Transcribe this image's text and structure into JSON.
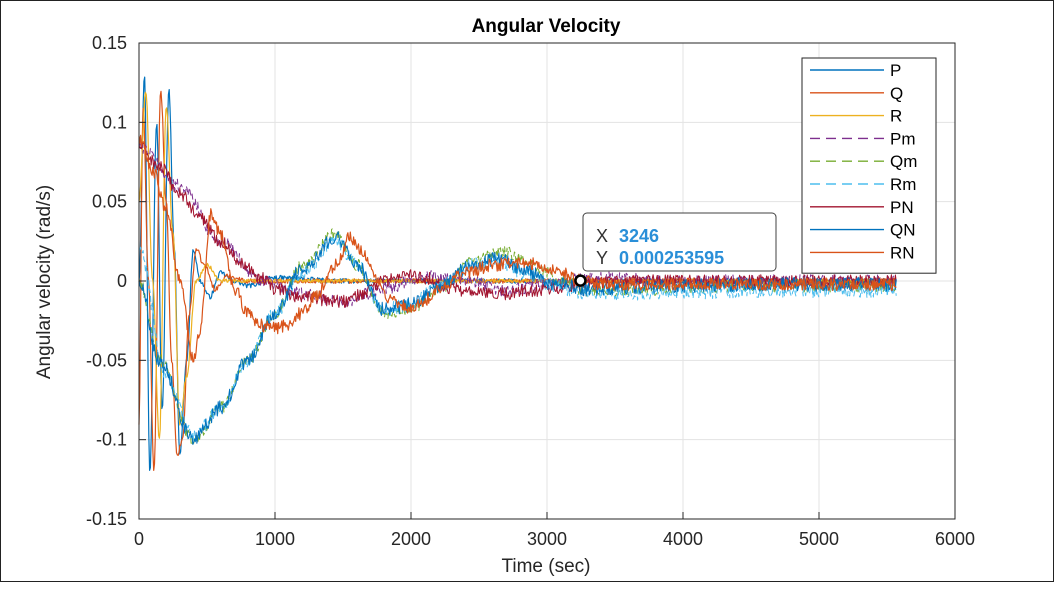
{
  "chart_data": {
    "type": "line",
    "title": "Angular Velocity",
    "xlabel": "Time (sec)",
    "ylabel": "Angular velocity (rad/s)",
    "xlim": [
      0,
      6000
    ],
    "ylim": [
      -0.15,
      0.15
    ],
    "grid": true,
    "xticks": [
      0,
      1000,
      2000,
      3000,
      4000,
      5000,
      6000
    ],
    "xtick_labels": [
      "0",
      "1000",
      "2000",
      "3000",
      "4000",
      "5000",
      "6000"
    ],
    "yticks": [
      -0.15,
      -0.1,
      -0.05,
      0,
      0.05,
      0.1,
      0.15
    ],
    "ytick_labels": [
      "-0.15",
      "-0.1",
      "-0.05",
      "0",
      "0.05",
      "0.1",
      "0.15"
    ],
    "legend_position": "top-right",
    "series": [
      {
        "name": "P",
        "color": "#0072BD",
        "dash": false,
        "width": 1.2,
        "noise": 0.0015,
        "x": [
          0,
          40,
          80,
          130,
          170,
          220,
          260,
          300,
          350,
          400,
          450,
          520,
          600,
          700,
          800,
          1000,
          1500,
          2000,
          3000,
          4000,
          5570
        ],
        "y": [
          0.0,
          0.13,
          -0.12,
          0.1,
          -0.08,
          0.12,
          0.02,
          -0.11,
          -0.05,
          0.02,
          0.0,
          -0.01,
          0.005,
          0.0,
          -0.003,
          0.002,
          0.0,
          0.0,
          0.0,
          0.0,
          0.0
        ]
      },
      {
        "name": "Q",
        "color": "#D95319",
        "dash": false,
        "width": 1.2,
        "noise": 0.0015,
        "x": [
          0,
          30,
          70,
          110,
          160,
          200,
          240,
          280,
          320,
          370,
          420,
          480,
          560,
          650,
          800,
          1000,
          1500,
          2000,
          3000,
          4000,
          5570
        ],
        "y": [
          -0.09,
          0.11,
          0.0,
          -0.12,
          0.12,
          0.05,
          -0.05,
          -0.11,
          -0.1,
          -0.02,
          0.02,
          0.01,
          -0.005,
          0.003,
          0.0,
          0.0,
          0.0,
          0.0,
          0.0,
          0.0,
          0.0
        ]
      },
      {
        "name": "R",
        "color": "#EDB120",
        "dash": false,
        "width": 1.2,
        "noise": 0.0012,
        "x": [
          0,
          50,
          100,
          150,
          200,
          250,
          300,
          350,
          420,
          500,
          600,
          800,
          1000,
          2000,
          3000,
          5570
        ],
        "y": [
          0.05,
          0.12,
          0.0,
          -0.1,
          0.11,
          0.03,
          -0.09,
          -0.06,
          0.0,
          0.01,
          0.0,
          0.0,
          0.0,
          0.0,
          0.0,
          0.0
        ]
      },
      {
        "name": "Pm",
        "color": "#7E2F8E",
        "dash": true,
        "width": 1.0,
        "noise": 0.004,
        "x": [
          0,
          300,
          600,
          900,
          1200,
          1500,
          1800,
          2100,
          2400,
          2700,
          3000,
          3300,
          4000,
          5000,
          5570
        ],
        "y": [
          0.085,
          0.06,
          0.025,
          0.0,
          -0.008,
          -0.013,
          -0.005,
          0.003,
          0.0,
          -0.006,
          -0.002,
          0.002,
          0.0,
          0.0,
          0.0
        ]
      },
      {
        "name": "Qm",
        "color": "#77AC30",
        "dash": true,
        "width": 1.0,
        "noise": 0.004,
        "x": [
          0,
          150,
          400,
          600,
          800,
          1000,
          1200,
          1450,
          1600,
          1800,
          2000,
          2200,
          2450,
          2680,
          2900,
          3100,
          3300,
          3600,
          4000,
          4500,
          5000,
          5570
        ],
        "y": [
          0.0,
          -0.05,
          -0.1,
          -0.08,
          -0.05,
          -0.02,
          0.01,
          0.03,
          0.01,
          -0.02,
          -0.017,
          -0.005,
          0.012,
          0.018,
          0.01,
          0.0,
          -0.006,
          -0.006,
          -0.004,
          -0.003,
          -0.003,
          -0.003
        ]
      },
      {
        "name": "Rm",
        "color": "#4DBEEE",
        "dash": true,
        "width": 1.0,
        "noise": 0.0045,
        "x": [
          0,
          200,
          400,
          600,
          800,
          1000,
          1200,
          1450,
          1600,
          1800,
          2000,
          2200,
          2450,
          2650,
          2850,
          3050,
          3300,
          3600,
          4000,
          4500,
          5000,
          5570
        ],
        "y": [
          0.02,
          -0.06,
          -0.098,
          -0.08,
          -0.05,
          -0.02,
          0.005,
          0.025,
          0.01,
          -0.018,
          -0.015,
          -0.003,
          0.01,
          0.012,
          0.005,
          -0.003,
          -0.008,
          -0.008,
          -0.007,
          -0.006,
          -0.006,
          -0.006
        ]
      },
      {
        "name": "PN",
        "color": "#A2142F",
        "dash": false,
        "width": 1.0,
        "noise": 0.004,
        "x": [
          0,
          150,
          300,
          450,
          600,
          750,
          900,
          1000,
          1200,
          1400,
          1500,
          1650,
          1800,
          1950,
          2100,
          2300,
          2500,
          2700,
          2900,
          3100,
          3300,
          3600,
          4000,
          4500,
          5000,
          5570
        ],
        "y": [
          0.085,
          0.072,
          0.055,
          0.04,
          0.025,
          0.012,
          0.002,
          -0.005,
          -0.01,
          -0.012,
          -0.013,
          -0.008,
          0.0,
          0.004,
          0.002,
          -0.005,
          -0.008,
          -0.008,
          -0.006,
          -0.004,
          -0.002,
          0.0,
          0.0,
          0.0,
          0.0,
          0.0
        ]
      },
      {
        "name": "QN",
        "color": "#0072BD",
        "dash": false,
        "width": 1.0,
        "noise": 0.0045,
        "x": [
          0,
          150,
          400,
          600,
          800,
          1000,
          1200,
          1450,
          1600,
          1800,
          2000,
          2200,
          2450,
          2650,
          2850,
          3050,
          3300,
          3600,
          4000,
          4500,
          5000,
          5570
        ],
        "y": [
          0.0,
          -0.05,
          -0.1,
          -0.08,
          -0.05,
          -0.02,
          0.008,
          0.028,
          0.01,
          -0.018,
          -0.015,
          -0.004,
          0.01,
          0.014,
          0.006,
          -0.002,
          -0.005,
          -0.004,
          -0.003,
          -0.002,
          -0.002,
          -0.002
        ]
      },
      {
        "name": "RN",
        "color": "#D95319",
        "dash": false,
        "width": 1.2,
        "noise": 0.004,
        "x": [
          0,
          100,
          200,
          300,
          400,
          450,
          530,
          600,
          700,
          800,
          900,
          1000,
          1100,
          1200,
          1300,
          1450,
          1550,
          1650,
          1750,
          1850,
          2000,
          2100,
          2200,
          2400,
          2600,
          2800,
          2950,
          3100,
          3250,
          3400,
          3600,
          3800,
          4000,
          4500,
          5000,
          5570
        ],
        "y": [
          0.09,
          0.07,
          0.045,
          0.0,
          -0.05,
          -0.03,
          0.043,
          0.03,
          -0.005,
          -0.02,
          -0.028,
          -0.03,
          -0.027,
          -0.02,
          -0.01,
          0.01,
          0.028,
          0.018,
          0.0,
          -0.012,
          -0.017,
          -0.012,
          -0.005,
          0.005,
          0.01,
          0.012,
          0.01,
          0.005,
          0.00025,
          -0.002,
          -0.002,
          -0.002,
          -0.002,
          -0.002,
          -0.002,
          -0.002
        ]
      }
    ],
    "datatip": {
      "x_label": "X",
      "x_value": "3246",
      "y_label": "Y",
      "y_value": "0.000253595",
      "x": 3246,
      "y": 0.000253595
    }
  }
}
